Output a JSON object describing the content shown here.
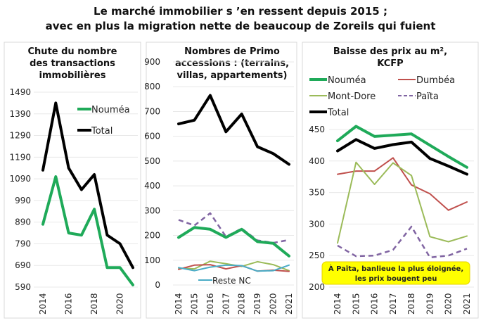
{
  "title": {
    "line1": "Le marché immobilier s ’en ressent depuis  2015 ;",
    "line2": "avec en plus la migration nette de beaucoup de Zoreils qui fuient"
  },
  "colors": {
    "noumea": "#1faa59",
    "total": "#000000",
    "dumbea": "#c0504d",
    "montdore": "#9bbb59",
    "paita": "#8064a2",
    "reste": "#4bacc6",
    "note_bg": "#ffff00"
  },
  "chart_data": [
    {
      "type": "line",
      "title": "Chute du nombre des transactions immobilières",
      "title_lines": [
        "Chute du nombre",
        "des transactions",
        "immobilières"
      ],
      "x": [
        2014,
        2015,
        2016,
        2017,
        2018,
        2019,
        2020,
        2021
      ],
      "x_tick_labels": [
        "2014",
        "2016",
        "2018",
        "2020"
      ],
      "y_ticks": [
        "1490",
        "1390",
        "1290",
        "1190",
        "1090",
        "990",
        "890",
        "790",
        "690",
        "590"
      ],
      "ylim": [
        590,
        1490
      ],
      "grid": true,
      "legend": "top-right",
      "series": [
        {
          "name": "Nouméa",
          "color_key": "noumea",
          "values": [
            880,
            1100,
            840,
            830,
            950,
            680,
            680,
            600
          ]
        },
        {
          "name": "Total",
          "color_key": "total",
          "values": [
            1130,
            1440,
            1140,
            1040,
            1110,
            830,
            790,
            680
          ]
        }
      ]
    },
    {
      "type": "line",
      "title": "Nombres de Primo accessions : (terrains, villas, appartements)",
      "title_lines": [
        "Nombres de Primo",
        "accessions : (terrains,",
        "villas, appartements)"
      ],
      "x": [
        2014,
        2015,
        2016,
        2017,
        2018,
        2019,
        2020,
        2021
      ],
      "x_tick_labels": [
        "2014",
        "2015",
        "2016",
        "2017",
        "2018",
        "2019",
        "2020",
        "2021"
      ],
      "y_ticks": [
        "900",
        "800",
        "700",
        "600",
        "500",
        "400",
        "300",
        "200",
        "100",
        "0"
      ],
      "ylim": [
        0,
        900
      ],
      "grid": true,
      "legend": "bottom-center",
      "series": [
        {
          "name": "Total",
          "color_key": "total",
          "values": [
            650,
            665,
            765,
            618,
            690,
            558,
            530,
            487
          ]
        },
        {
          "name": "Paita",
          "color_key": "paita",
          "dashed": true,
          "values": [
            263,
            240,
            290,
            195,
            228,
            180,
            170,
            182
          ]
        },
        {
          "name": "Nouméa",
          "color_key": "noumea",
          "values": [
            192,
            232,
            225,
            192,
            225,
            175,
            168,
            117
          ]
        },
        {
          "name": "Mont-Dore",
          "color_key": "montdore",
          "values": [
            68,
            65,
            96,
            86,
            75,
            94,
            82,
            58
          ]
        },
        {
          "name": "Dumbéa",
          "color_key": "dumbea",
          "values": [
            63,
            80,
            82,
            65,
            78,
            56,
            60,
            55
          ]
        },
        {
          "name": "Reste NC",
          "color_key": "reste",
          "values": [
            70,
            58,
            72,
            80,
            78,
            56,
            58,
            80
          ]
        }
      ],
      "legend_shown": [
        "Reste NC"
      ]
    },
    {
      "type": "line",
      "title": "Baisse des prix au m², KCFP",
      "title_lines": [
        "Baisse des prix au m²,",
        "KCFP"
      ],
      "x": [
        2014,
        2015,
        2016,
        2017,
        2018,
        2019,
        2020,
        2021
      ],
      "x_tick_labels": [
        "2014",
        "2015",
        "2016",
        "2017",
        "2018",
        "2019",
        "2020",
        "2021"
      ],
      "y_ticks": [
        "450",
        "400",
        "350",
        "300",
        "250",
        "200"
      ],
      "ylim": [
        200,
        450
      ],
      "grid": true,
      "legend": "top",
      "series": [
        {
          "name": "Nouméa",
          "color_key": "noumea",
          "values": [
            432,
            455,
            439,
            441,
            443,
            425,
            407,
            390
          ]
        },
        {
          "name": "Dumbéa",
          "color_key": "dumbea",
          "values": [
            379,
            384,
            384,
            405,
            362,
            348,
            322,
            335
          ]
        },
        {
          "name": "Mont-Dore",
          "color_key": "montdore",
          "values": [
            270,
            398,
            363,
            397,
            377,
            280,
            272,
            281
          ]
        },
        {
          "name": "Païta",
          "color_key": "paita",
          "dashed": true,
          "values": [
            266,
            249,
            250,
            259,
            296,
            247,
            250,
            261
          ]
        },
        {
          "name": "Total",
          "color_key": "total",
          "values": [
            416,
            434,
            420,
            426,
            430,
            404,
            392,
            379
          ]
        }
      ],
      "annotation": [
        "À Païta, banlieue la plus éloignée,",
        "les prix bougent peu"
      ]
    }
  ]
}
